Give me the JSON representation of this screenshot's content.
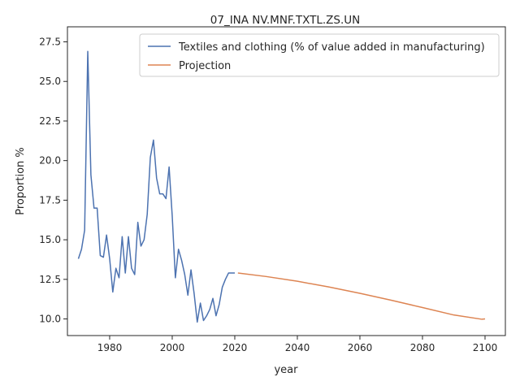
{
  "chart_data": {
    "type": "line",
    "title": "07_INA NV.MNF.TXTL.ZS.UN",
    "xlabel": "year",
    "ylabel": "Proportion %",
    "xlim": [
      1966.5,
      2106.5
    ],
    "ylim": [
      8.95,
      28.45
    ],
    "x_ticks": [
      1980,
      2000,
      2020,
      2040,
      2060,
      2080,
      2100
    ],
    "y_ticks": [
      10.0,
      12.5,
      15.0,
      17.5,
      20.0,
      22.5,
      25.0,
      27.5
    ],
    "grid": false,
    "legend_position": "top-right",
    "series": [
      {
        "name": "Textiles and clothing (% of value added in manufacturing)",
        "color": "#4c72b0",
        "points": [
          [
            1970,
            13.8
          ],
          [
            1971,
            14.4
          ],
          [
            1972,
            15.6
          ],
          [
            1973,
            26.9
          ],
          [
            1974,
            19.1
          ],
          [
            1975,
            17.0
          ],
          [
            1976,
            17.0
          ],
          [
            1977,
            14.0
          ],
          [
            1978,
            13.9
          ],
          [
            1979,
            15.3
          ],
          [
            1980,
            13.8
          ],
          [
            1981,
            11.7
          ],
          [
            1982,
            13.2
          ],
          [
            1983,
            12.6
          ],
          [
            1984,
            15.2
          ],
          [
            1985,
            12.9
          ],
          [
            1986,
            15.2
          ],
          [
            1987,
            13.2
          ],
          [
            1988,
            12.8
          ],
          [
            1989,
            16.1
          ],
          [
            1990,
            14.6
          ],
          [
            1991,
            15.0
          ],
          [
            1992,
            16.6
          ],
          [
            1993,
            20.2
          ],
          [
            1994,
            21.3
          ],
          [
            1995,
            18.9
          ],
          [
            1996,
            17.9
          ],
          [
            1997,
            17.9
          ],
          [
            1998,
            17.6
          ],
          [
            1999,
            19.6
          ],
          [
            2000,
            16.5
          ],
          [
            2001,
            12.6
          ],
          [
            2002,
            14.4
          ],
          [
            2003,
            13.7
          ],
          [
            2004,
            12.8
          ],
          [
            2005,
            11.5
          ],
          [
            2006,
            13.1
          ],
          [
            2007,
            11.6
          ],
          [
            2008,
            9.8
          ],
          [
            2009,
            11.0
          ],
          [
            2010,
            9.9
          ],
          [
            2011,
            10.2
          ],
          [
            2012,
            10.6
          ],
          [
            2013,
            11.3
          ],
          [
            2014,
            10.2
          ],
          [
            2015,
            10.9
          ],
          [
            2016,
            12.0
          ],
          [
            2017,
            12.5
          ],
          [
            2018,
            12.9
          ],
          [
            2019,
            12.9
          ],
          [
            2020,
            12.9
          ]
        ]
      },
      {
        "name": "Projection",
        "color": "#dd8452",
        "points": [
          [
            2021,
            12.9
          ],
          [
            2030,
            12.68
          ],
          [
            2040,
            12.38
          ],
          [
            2050,
            12.02
          ],
          [
            2060,
            11.62
          ],
          [
            2070,
            11.18
          ],
          [
            2080,
            10.72
          ],
          [
            2090,
            10.25
          ],
          [
            2099,
            9.98
          ],
          [
            2100,
            10.0
          ]
        ]
      }
    ]
  }
}
